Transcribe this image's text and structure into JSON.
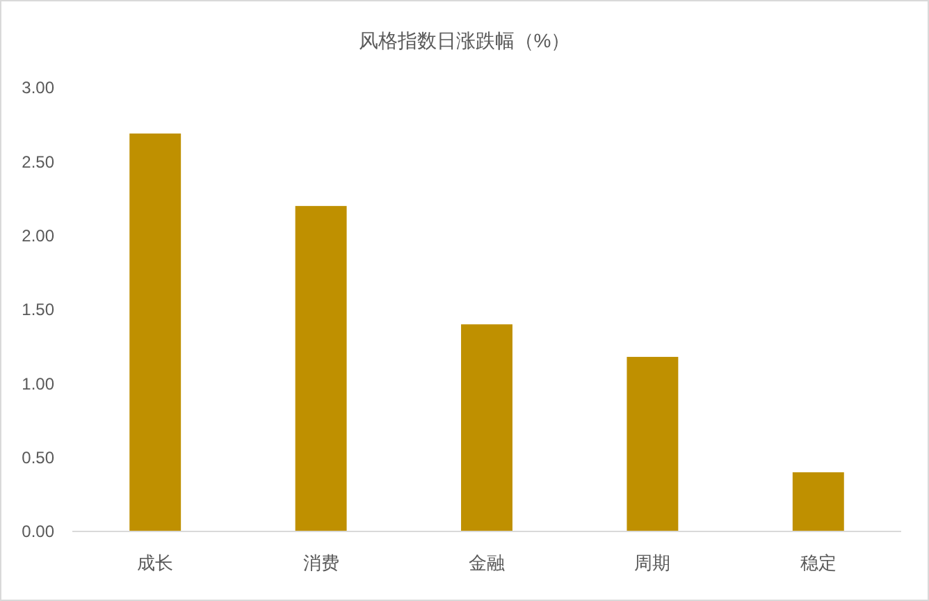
{
  "chart_data": {
    "type": "bar",
    "title": "风格指数日涨跌幅（%）",
    "categories": [
      "成长",
      "消费",
      "金融",
      "周期",
      "稳定"
    ],
    "values": [
      2.69,
      2.2,
      1.4,
      1.18,
      0.4
    ],
    "color": "#bf9000",
    "ylim": [
      0,
      3
    ],
    "yticks": [
      {
        "value": 0,
        "label": "0.00"
      },
      {
        "value": 0.5,
        "label": "0.50"
      },
      {
        "value": 1,
        "label": "1.00"
      },
      {
        "value": 1.5,
        "label": "1.50"
      },
      {
        "value": 2,
        "label": "2.00"
      },
      {
        "value": 2.5,
        "label": "2.50"
      },
      {
        "value": 3,
        "label": "3.00"
      }
    ],
    "grid": false
  }
}
